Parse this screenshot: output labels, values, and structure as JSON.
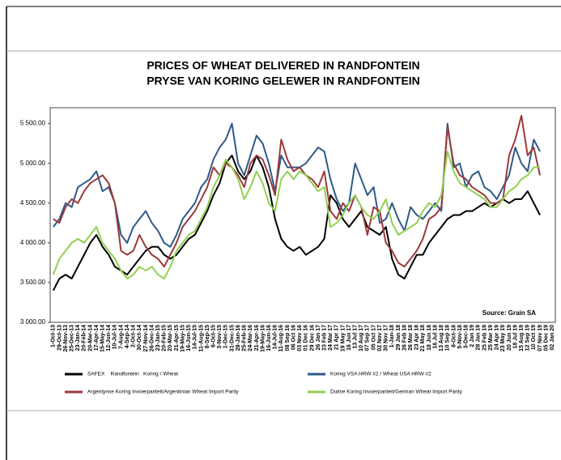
{
  "chart_data": {
    "type": "line",
    "title": "PRICES OF WHEAT DELIVERED IN RANDFONTEIN",
    "subtitle": "PRYSE VAN KORING GELEWER IN RANDFONTEIN",
    "annotation": "Source: Grain SA",
    "categories": [
      "1-Oct-13",
      "29-Oct-13",
      "26-Nov-13",
      "25-Dec-13",
      "23-Jan-14",
      "20-Feb-14",
      "20-Mar-14",
      "17-Apr-14",
      "15-May-14",
      "12-Jun-14",
      "10-Jul-14",
      "7-Aug-14",
      "4-Sep-14",
      "2-Oct-14",
      "30-Oct-14",
      "27-Nov-14",
      "26-Dec-14",
      "23-Jan-15",
      "20-Feb-15",
      "20-Mar-15",
      "21-Apr-15",
      "19-May-15",
      "16-Jun-15",
      "14-Jul-15",
      "11-Aug-15",
      "8-Sep-15",
      "6-Oct-15",
      "3-Nov-15",
      "1-Dec-15",
      "31-Dec-15",
      "28-Jan-16",
      "25-Feb-16",
      "24-Mar-16",
      "21-Apr-16",
      "19-May-16",
      "16-Jun-16",
      "14-Jul-16",
      "11-Aug-16",
      "08 Sep 16",
      "06 Oct 16",
      "03 Nov 16",
      "01 Dec 16",
      "29 Dec 16",
      "26 Jan 17",
      "23 Feb 17",
      "24 Mar 17",
      "21 Apr 17",
      "19 May 17",
      "16 Jun 17",
      "13 Jul 17",
      "10 Aug 17",
      "07 Sep 17",
      "05 Oct 17",
      "02 Nov 17",
      "30 Nov 17",
      "1-Jan-18",
      "29 Jan 18",
      "26 Feb 18",
      "26 Mar 18",
      "23 Apr 18",
      "21 May 18",
      "18 Jun 18",
      "16 Jul 18",
      "13 Aug 18",
      "10 Sep 18",
      "8-Oct-18",
      "5-Nov-18",
      "3-Dec-18",
      "2 Jan 19",
      "28 Jan 19",
      "25 Feb 19",
      "25 Mar 19",
      "24 Apr 19",
      "23 May 19",
      "20 Jun 19",
      "18 Jul 19",
      "15 Aug 19",
      "12 Sep 19",
      "10 Oct 19",
      "07 Nov 19",
      "05 Dec 19",
      "02 Jan 20"
    ],
    "series": [
      {
        "name": "SAFEX    Randfontein   Koring / Wheat",
        "color": "#000000",
        "values": [
          3400,
          3550,
          3600,
          3550,
          3700,
          3850,
          4000,
          4100,
          3950,
          3850,
          3700,
          3650,
          3600,
          3700,
          3800,
          3900,
          3950,
          3950,
          3850,
          3800,
          3850,
          3950,
          4050,
          4100,
          4250,
          4400,
          4600,
          4750,
          5000,
          5100,
          4900,
          4800,
          4900,
          5100,
          4950,
          4700,
          4300,
          4050,
          3950,
          3900,
          3950,
          3850,
          3900,
          3950,
          4050,
          4600,
          4500,
          4300,
          4200,
          4300,
          4400,
          4200,
          4150,
          4100,
          4200,
          3800,
          3600,
          3550,
          3700,
          3850,
          3850,
          4000,
          4100,
          4200,
          4300,
          4350,
          4350,
          4400,
          4400,
          4450,
          4500,
          4450,
          4500,
          4550,
          4500,
          4550,
          4550,
          4650,
          4500,
          4350,
          null,
          null
        ]
      },
      {
        "name": "Koring VSA HRW #2 / Wheat USA HRW #2",
        "color": "#2e5a8a",
        "values": [
          4200,
          4300,
          4500,
          4450,
          4700,
          4750,
          4800,
          4900,
          4650,
          4700,
          4500,
          4100,
          4000,
          4200,
          4300,
          4400,
          4250,
          4150,
          4000,
          3950,
          4100,
          4300,
          4400,
          4500,
          4700,
          4800,
          5050,
          5200,
          5300,
          5500,
          5000,
          4850,
          5100,
          5350,
          5250,
          5000,
          4650,
          5100,
          4950,
          4950,
          4950,
          5000,
          5100,
          5200,
          5150,
          4800,
          4550,
          4400,
          4500,
          5000,
          4800,
          4600,
          4700,
          4250,
          4300,
          4500,
          4300,
          4150,
          4450,
          4350,
          4300,
          4400,
          4500,
          4400,
          5500,
          4950,
          5000,
          4700,
          4850,
          4900,
          4700,
          4650,
          4550,
          4700,
          4850,
          5200,
          5000,
          4900,
          5300,
          5150,
          null,
          null
        ]
      },
      {
        "name": "Argentynse Koring Invoerpariteit/Argentinian Wheat Import Parity",
        "color": "#9b3a3a",
        "values": [
          4300,
          4250,
          4450,
          4550,
          4500,
          4650,
          4750,
          4800,
          4850,
          4750,
          4500,
          3900,
          3850,
          3900,
          4100,
          3950,
          3850,
          3800,
          3700,
          3850,
          4000,
          4200,
          4300,
          4400,
          4550,
          4700,
          4950,
          4850,
          5000,
          4950,
          4850,
          4700,
          5000,
          5100,
          5050,
          4850,
          4600,
          5300,
          5050,
          4900,
          4950,
          4850,
          4800,
          4700,
          4900,
          4400,
          4300,
          4500,
          4400,
          4600,
          4450,
          4100,
          4450,
          4400,
          4000,
          3900,
          3750,
          3700,
          3800,
          3900,
          4050,
          4300,
          4350,
          4450,
          5450,
          5000,
          4850,
          4800,
          4700,
          4650,
          4600,
          4500,
          4500,
          4550,
          5100,
          5300,
          5600,
          5100,
          5200,
          4850,
          null,
          null
        ]
      },
      {
        "name": "Duitse Koring Invoerpariteit/German Wheat Import Parity",
        "color": "#92d050",
        "values": [
          3600,
          3800,
          3900,
          4000,
          4050,
          4000,
          4100,
          4200,
          4000,
          3900,
          3800,
          3650,
          3550,
          3600,
          3700,
          3650,
          3700,
          3600,
          3550,
          3700,
          3900,
          4000,
          4100,
          4150,
          4300,
          4450,
          4700,
          4850,
          5050,
          4950,
          4800,
          4550,
          4700,
          4900,
          4750,
          4500,
          4400,
          4800,
          4900,
          4800,
          4900,
          4850,
          4750,
          4650,
          4700,
          4200,
          4250,
          4350,
          4500,
          4600,
          4450,
          4350,
          4300,
          4400,
          4550,
          4250,
          4100,
          4150,
          4200,
          4250,
          4400,
          4500,
          4450,
          4600,
          5150,
          4900,
          4750,
          4700,
          4650,
          4600,
          4550,
          4450,
          4450,
          4550,
          4650,
          4700,
          4800,
          4850,
          4950,
          4950,
          null,
          null
        ]
      }
    ],
    "ylim": [
      3000,
      5700
    ],
    "yticks": [
      {
        "value": 3000,
        "label": "3 000.00"
      },
      {
        "value": 3500,
        "label": "3 500.00"
      },
      {
        "value": 4000,
        "label": "4 000.00"
      },
      {
        "value": 4500,
        "label": "4 500.00"
      },
      {
        "value": 5000,
        "label": "5 000.00"
      },
      {
        "value": 5500,
        "label": "5 500.00"
      }
    ],
    "grid": false
  }
}
